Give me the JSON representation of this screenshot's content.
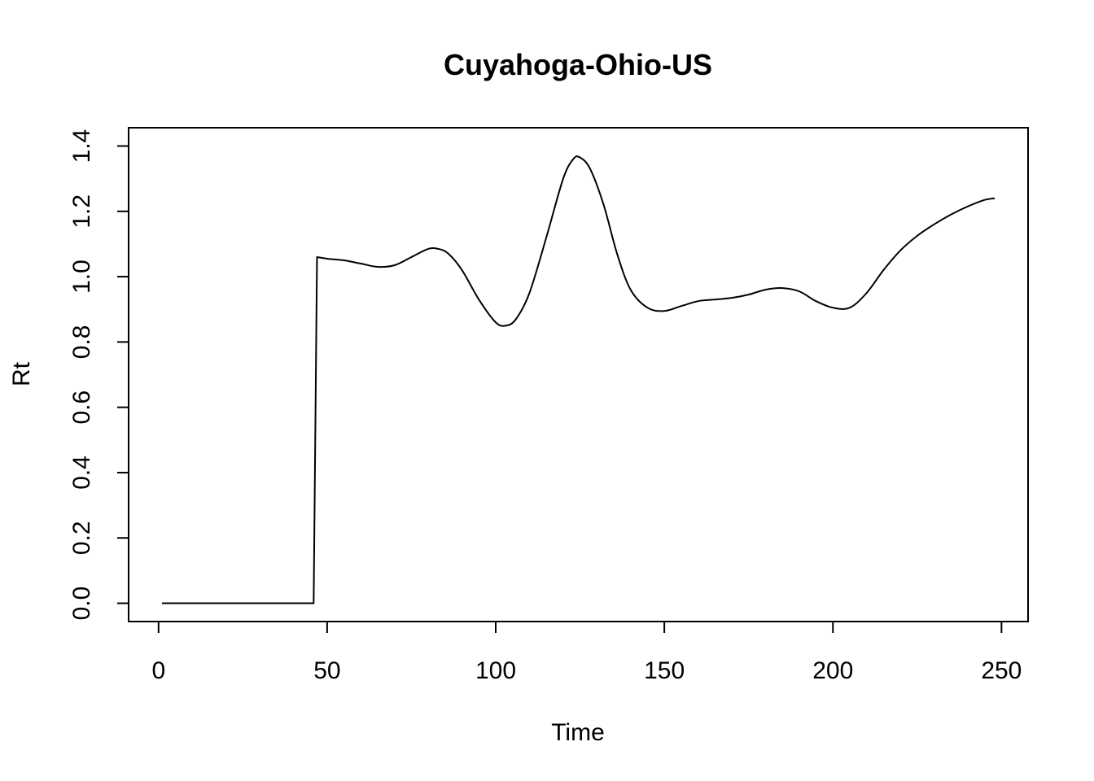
{
  "chart_data": {
    "type": "line",
    "title": "Cuyahoga-Ohio-US",
    "xlabel": "Time",
    "ylabel": "Rt",
    "xlim": [
      1,
      248
    ],
    "ylim": [
      0,
      1.4
    ],
    "x_ticks": [
      0,
      50,
      100,
      150,
      200,
      250
    ],
    "y_ticks": [
      0.0,
      0.2,
      0.4,
      0.6,
      0.8,
      1.0,
      1.2,
      1.4
    ],
    "x_tick_labels": [
      "0",
      "50",
      "100",
      "150",
      "200",
      "250"
    ],
    "y_tick_labels": [
      "0.0",
      "0.2",
      "0.4",
      "0.6",
      "0.8",
      "1.0",
      "1.2",
      "1.4"
    ],
    "grid": false,
    "legend": "none",
    "line_color": "#000000",
    "series": [
      {
        "x": [
          1,
          10,
          20,
          30,
          40,
          46,
          47,
          50,
          55,
          60,
          65,
          70,
          75,
          80,
          83,
          86,
          90,
          95,
          100,
          103,
          106,
          110,
          115,
          120,
          123,
          125,
          128,
          132,
          136,
          140,
          145,
          150,
          155,
          160,
          165,
          170,
          175,
          180,
          185,
          190,
          195,
          200,
          205,
          210,
          215,
          220,
          225,
          230,
          235,
          240,
          245,
          248
        ],
        "y": [
          0,
          0,
          0,
          0,
          0,
          0,
          1.06,
          1.055,
          1.05,
          1.04,
          1.03,
          1.035,
          1.06,
          1.085,
          1.085,
          1.07,
          1.02,
          0.93,
          0.86,
          0.85,
          0.87,
          0.95,
          1.12,
          1.3,
          1.36,
          1.365,
          1.33,
          1.22,
          1.07,
          0.96,
          0.905,
          0.895,
          0.91,
          0.925,
          0.93,
          0.935,
          0.945,
          0.96,
          0.965,
          0.955,
          0.925,
          0.905,
          0.905,
          0.95,
          1.02,
          1.08,
          1.125,
          1.16,
          1.19,
          1.215,
          1.235,
          1.24
        ]
      }
    ]
  }
}
